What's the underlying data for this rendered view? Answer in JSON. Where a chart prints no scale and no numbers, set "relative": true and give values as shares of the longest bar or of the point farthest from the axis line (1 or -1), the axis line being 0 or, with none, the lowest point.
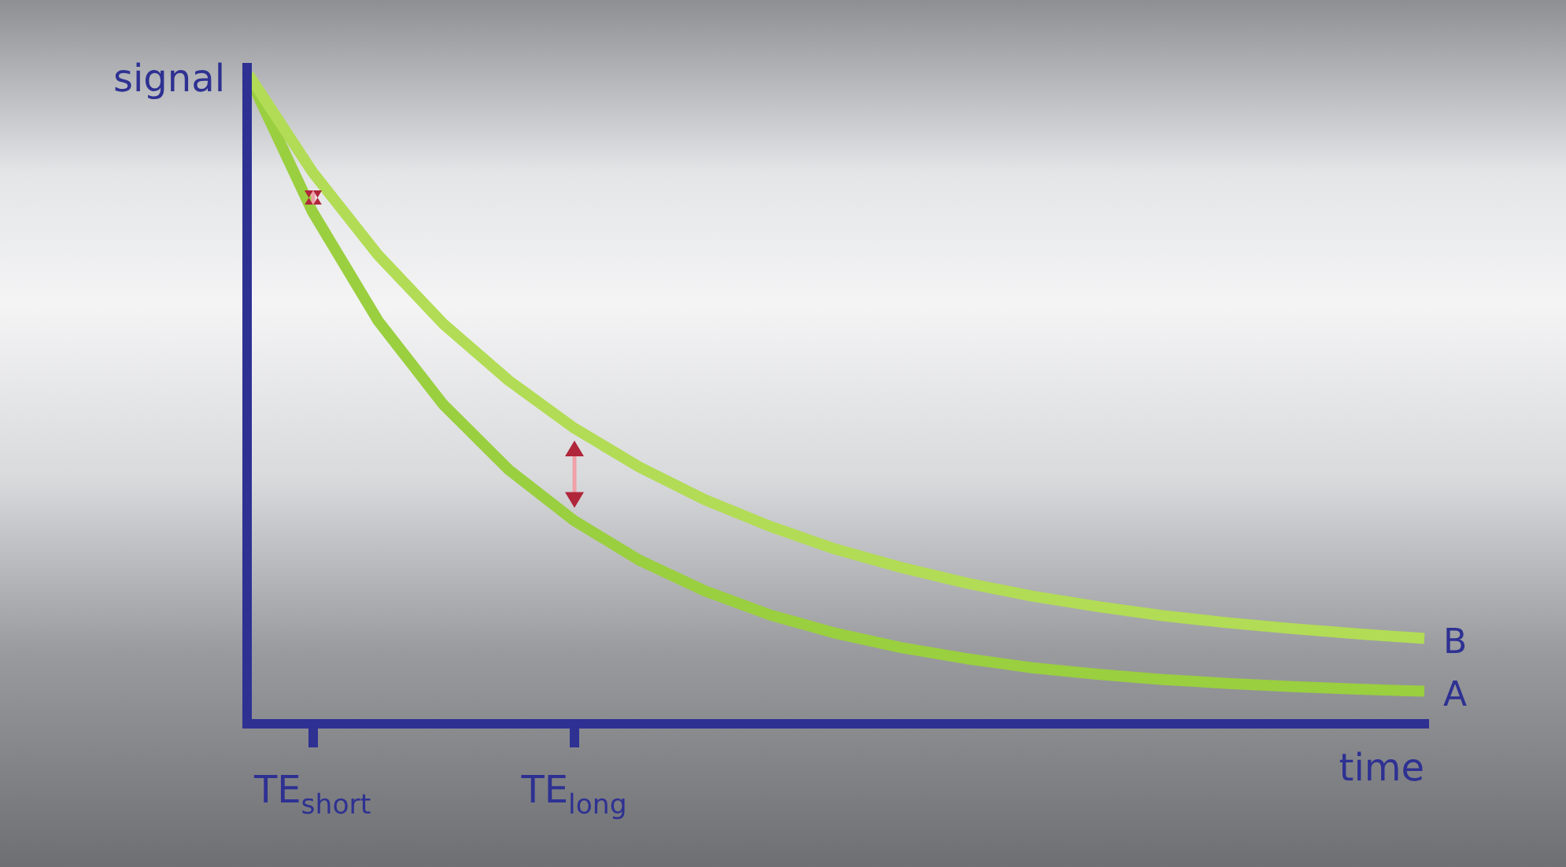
{
  "chart_data": {
    "type": "line",
    "relative": true,
    "xlabel": "time",
    "ylabel": "signal",
    "categories": [
      null,
      "TE$_{short}$",
      null,
      null,
      null,
      "TE$_{long}$",
      null,
      null,
      null,
      null,
      null,
      null,
      null,
      null,
      null,
      null,
      null,
      null,
      null
    ],
    "series": [
      {
        "name": "B",
        "color": "#b2dc55",
        "values": [
          1.0,
          0.847,
          0.72,
          0.614,
          0.527,
          0.454,
          0.394,
          0.344,
          0.303,
          0.268,
          0.24,
          0.216,
          0.196,
          0.18,
          0.166,
          0.155,
          0.146,
          0.138,
          0.131
        ]
      },
      {
        "name": "A",
        "color": "#9acf3f",
        "values": [
          1.0,
          0.786,
          0.619,
          0.49,
          0.39,
          0.312,
          0.251,
          0.204,
          0.167,
          0.139,
          0.117,
          0.1,
          0.086,
          0.076,
          0.068,
          0.062,
          0.057,
          0.053,
          0.05
        ]
      }
    ],
    "legend": false,
    "marker": "none",
    "line_style": "solid",
    "grid": false,
    "tick_labels": "x"
  }
}
